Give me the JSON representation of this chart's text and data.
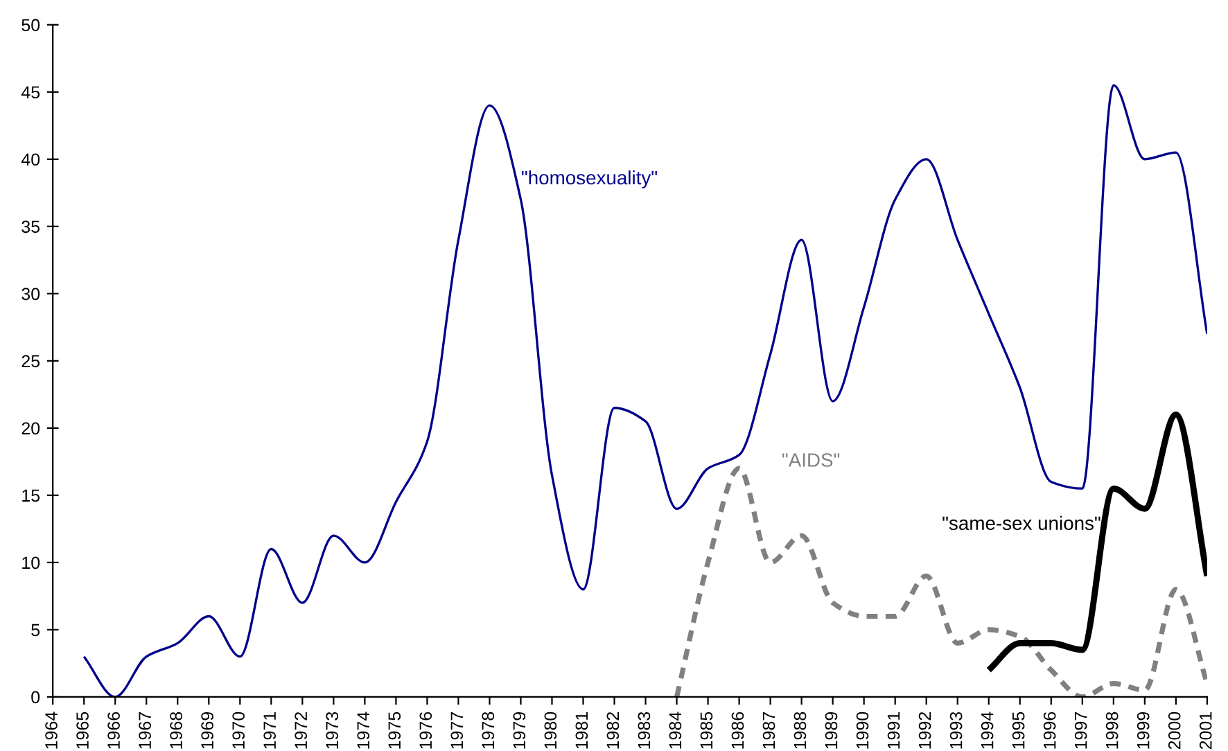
{
  "chart_data": {
    "type": "line",
    "categories": [
      "1964",
      "1965",
      "1966",
      "1967",
      "1968",
      "1969",
      "1970",
      "1971",
      "1972",
      "1973",
      "1974",
      "1975",
      "1976",
      "1977",
      "1978",
      "1979",
      "1980",
      "1981",
      "1982",
      "1983",
      "1984",
      "1985",
      "1986",
      "1987",
      "1988",
      "1989",
      "1990",
      "1991",
      "1992",
      "1993",
      "1994",
      "1995",
      "1996",
      "1997",
      "1998",
      "1999",
      "2000",
      "2001"
    ],
    "series": [
      {
        "name": "\"homosexuality\"",
        "color": "#00008b",
        "line_style": "solid",
        "values": [
          null,
          3,
          0,
          3,
          4,
          6,
          3,
          11,
          7,
          12,
          10,
          14.5,
          19,
          34,
          44,
          37,
          16.5,
          8,
          21.5,
          20.5,
          14,
          17,
          18,
          25.5,
          34,
          22,
          29,
          37,
          40,
          34,
          28.5,
          23,
          16,
          15.5,
          45.5,
          40,
          40.5,
          27
        ]
      },
      {
        "name": "\"AIDS\"",
        "color": "#808080",
        "line_style": "dashed",
        "values": [
          null,
          null,
          null,
          null,
          null,
          null,
          null,
          null,
          null,
          null,
          null,
          null,
          null,
          null,
          null,
          null,
          null,
          null,
          null,
          null,
          0,
          10,
          17,
          10,
          12,
          7,
          6,
          6,
          9,
          4,
          5,
          4.5,
          2,
          0,
          1,
          0.5,
          8,
          1
        ]
      },
      {
        "name": "\"same-sex unions\"",
        "color": "#000000",
        "line_style": "solid",
        "values": [
          null,
          null,
          null,
          null,
          null,
          null,
          null,
          null,
          null,
          null,
          null,
          null,
          null,
          null,
          null,
          null,
          null,
          null,
          null,
          null,
          null,
          null,
          null,
          null,
          null,
          null,
          null,
          null,
          null,
          null,
          2,
          4,
          4,
          3.5,
          15.5,
          14,
          21,
          9
        ]
      }
    ],
    "ylim": [
      0,
      50
    ],
    "yticks": [
      0,
      5,
      10,
      15,
      20,
      25,
      30,
      35,
      40,
      45,
      50
    ],
    "grid": false,
    "legend": false,
    "marker": "none"
  }
}
